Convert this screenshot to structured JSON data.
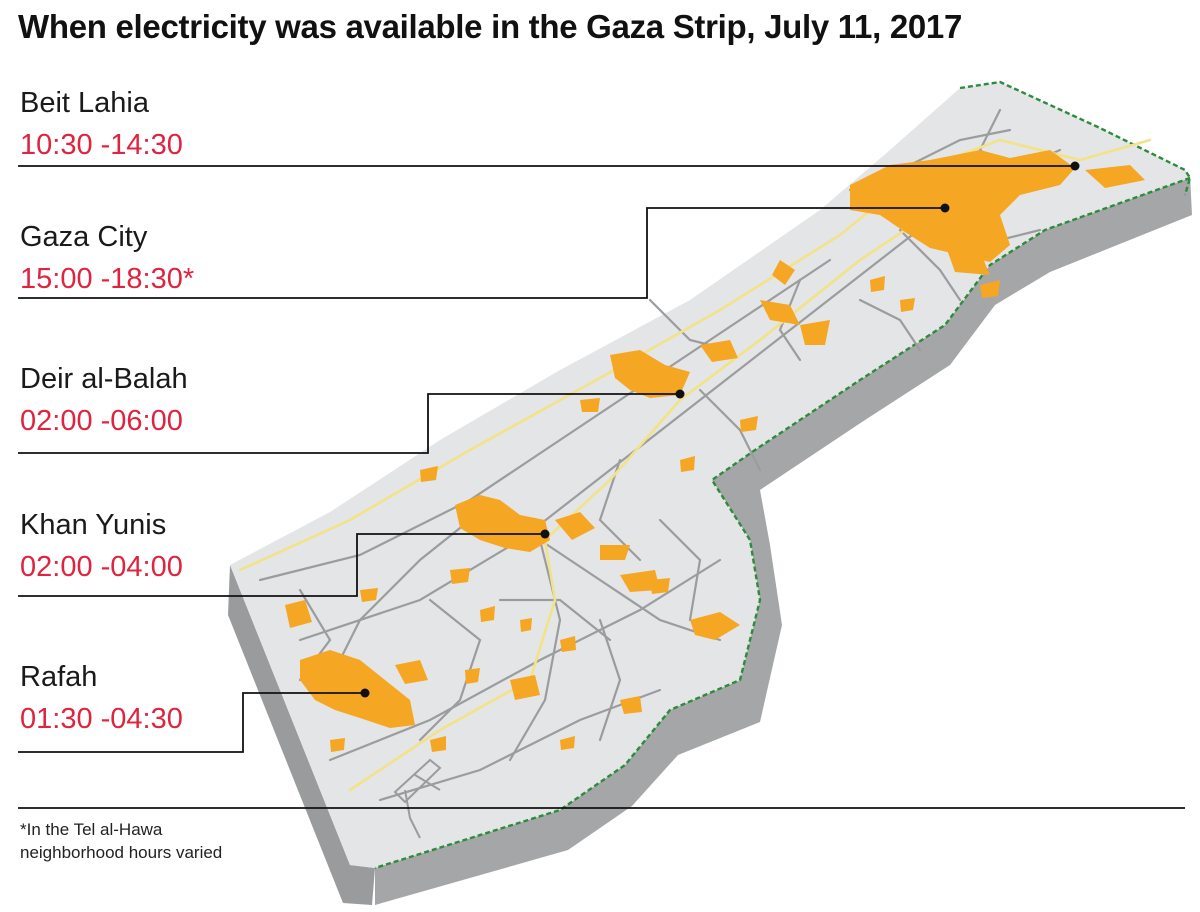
{
  "title": "When electricity was available in the Gaza Strip, July 11, 2017",
  "areas": [
    {
      "name": "Beit Lahia",
      "hours": "10:30 -14:30"
    },
    {
      "name": "Gaza City",
      "hours": "15:00 -18:30*"
    },
    {
      "name": "Deir al-Balah",
      "hours": "02:00 -06:00"
    },
    {
      "name": "Khan Yunis",
      "hours": "02:00 -04:00"
    },
    {
      "name": "Rafah",
      "hours": "01:30 -04:30"
    }
  ],
  "footnote": {
    "line1": "*In the Tel al-Hawa",
    "line2": "neighborhood hours varied"
  },
  "colors": {
    "land": "#e4e5e6",
    "side": "#a4a5a6",
    "side_dark": "#8e8f90",
    "road": "#9b9c9e",
    "main_road": "#f2e288",
    "built_up": "#f5a623",
    "border": "#2e8b3d",
    "hours_text": "#e0243f"
  }
}
